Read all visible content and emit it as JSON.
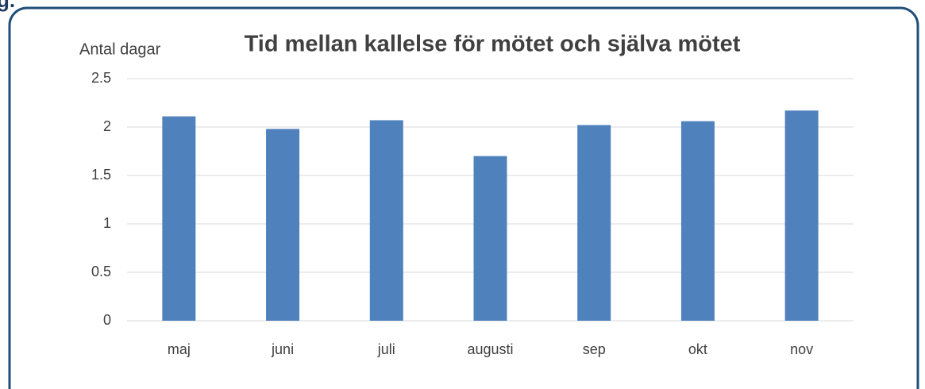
{
  "page_heading": "g.",
  "chart_data": {
    "type": "bar",
    "title": "Tid mellan kallelse för mötet och själva mötet",
    "y_axis_label": "Antal dagar",
    "categories": [
      "maj",
      "juni",
      "juli",
      "augusti",
      "sep",
      "okt",
      "nov"
    ],
    "values": [
      2.11,
      1.98,
      2.07,
      1.7,
      2.02,
      2.06,
      2.17
    ],
    "color": "#4f81bd",
    "ylim": [
      0,
      2.5
    ],
    "yticks": [
      0,
      0.5,
      1,
      1.5,
      2,
      2.5
    ],
    "grid": true
  }
}
